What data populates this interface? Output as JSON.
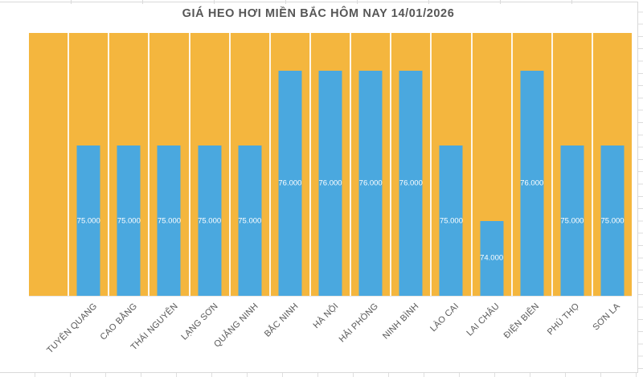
{
  "chart_data": {
    "type": "bar",
    "title": "GIÁ HEO HƠI MIỀN BẮC HÔM NAY 14/01/2026",
    "categories": [
      "TUYÊN QUANG",
      "CAO BẰNG",
      "THÁI NGUYÊN",
      "LẠNG SƠN",
      "QUẢNG NINH",
      "BẮC NINH",
      "HÀ NỘI",
      "HẢI PHÒNG",
      "NINH BÌNH",
      "LÀO CAI",
      "LAI CHÂU",
      "ĐIỆN BIÊN",
      "PHÚ THỌ",
      "SƠN LA"
    ],
    "values": [
      75000,
      75000,
      75000,
      75000,
      75000,
      76000,
      76000,
      76000,
      76000,
      75000,
      74000,
      76000,
      75000,
      75000
    ],
    "value_labels": [
      "75.000",
      "75.000",
      "75.000",
      "75.000",
      "75.000",
      "76.000",
      "76.000",
      "76.000",
      "76.000",
      "75.000",
      "74.000",
      "76.000",
      "75.000",
      "75.000"
    ],
    "xlabel": "",
    "ylabel": "",
    "ylim": [
      73000,
      76500
    ],
    "y_axis_visible": false,
    "legend": "none",
    "grid": "vertical white category separators on orange plot background",
    "data_label_position": "inside-center",
    "x_label_rotation_deg": 45,
    "layout": {
      "leading_blank_slots": 1
    }
  },
  "colors": {
    "bar": "#4AA8DF",
    "plot_background": "#F4B63E",
    "title": "#565656",
    "axis_label": "#595959",
    "data_label": "#FFFFFF",
    "frame": "#D9D9D9",
    "separator": "#FFFFFF"
  }
}
